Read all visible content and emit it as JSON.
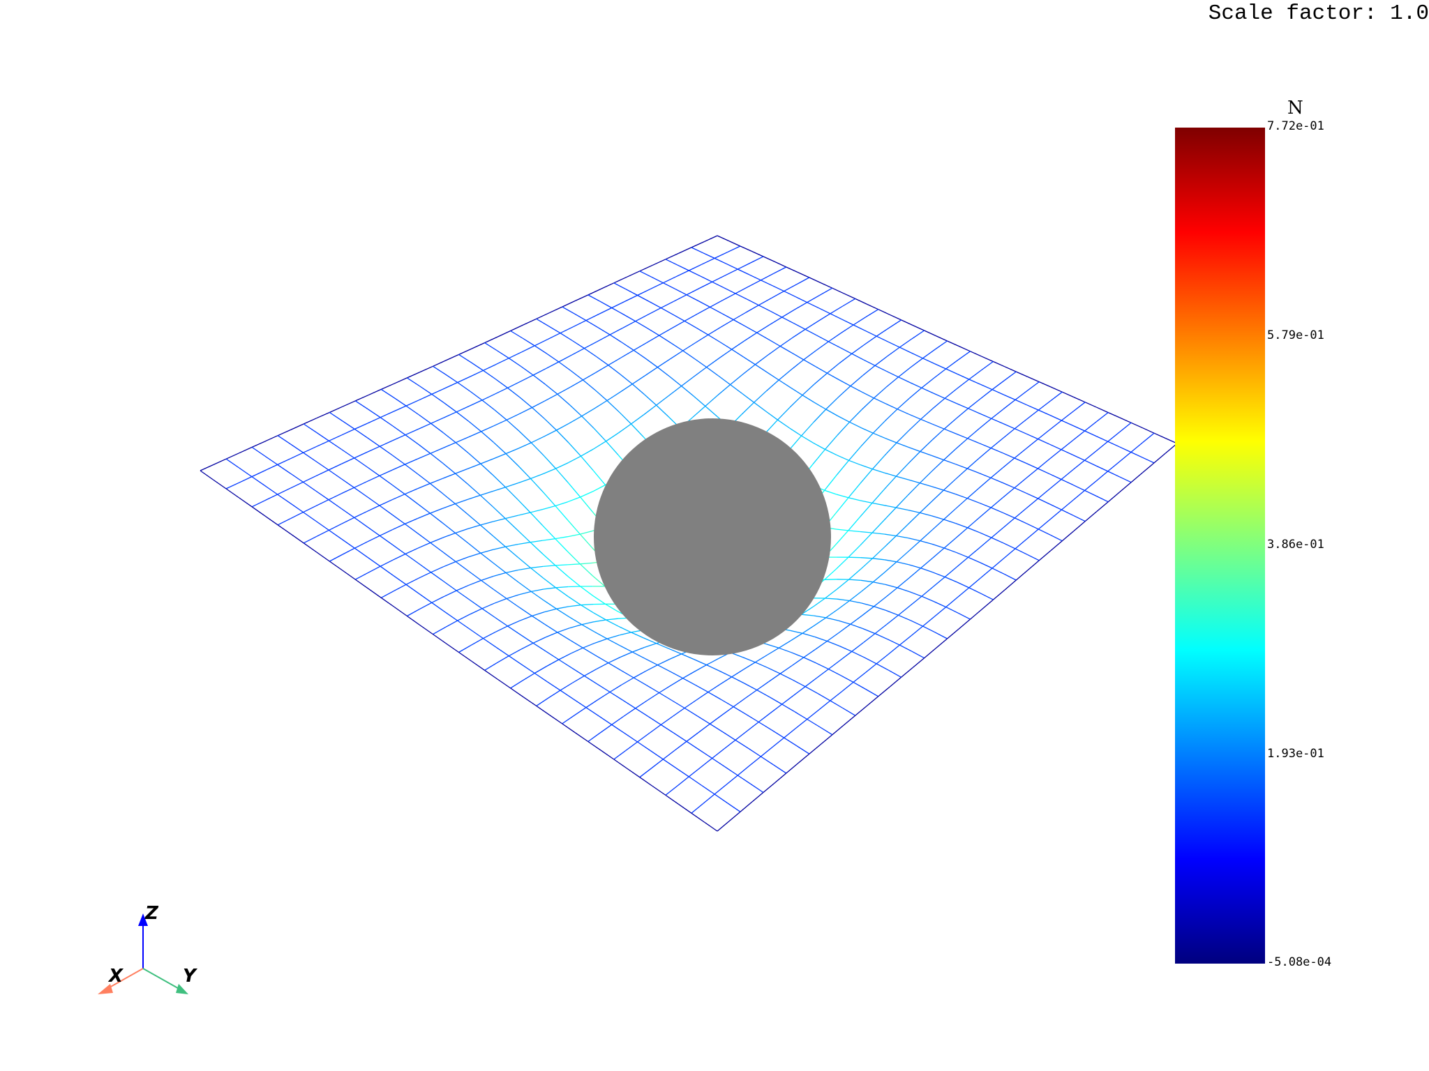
{
  "viewport": {
    "scale_factor_text": "Scale factor: 1.0"
  },
  "scalar_bar": {
    "title": "N",
    "max_label": "7.72e-01",
    "labels": [
      "7.72e-01",
      "5.79e-01",
      "3.86e-01",
      "1.93e-01",
      "-5.08e-04"
    ],
    "colors": [
      "#00007f",
      "#0000ff",
      "#007fff",
      "#00ffff",
      "#7fff7f",
      "#ffff00",
      "#ff7f00",
      "#ff0000",
      "#7f0000"
    ]
  },
  "mesh": {
    "grid_divisions": 20,
    "edge_color": "#0000a0"
  },
  "sphere": {
    "color": "#808080"
  },
  "orientation_axes": {
    "x_label": "X",
    "y_label": "Y",
    "z_label": "Z",
    "x_color": "#ff7f5f",
    "y_color": "#3fbf7f",
    "z_color": "#0000ff"
  }
}
